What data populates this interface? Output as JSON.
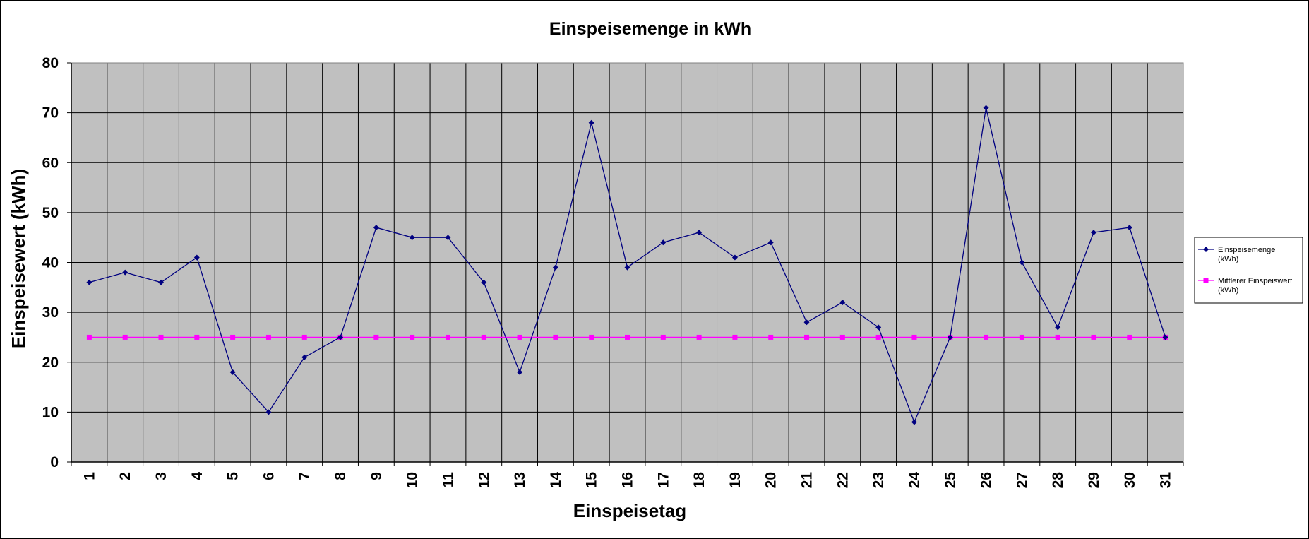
{
  "chart_data": {
    "type": "line",
    "title": "Einspeisemenge in kWh",
    "xlabel": "Einspeisetag",
    "ylabel": "Einspeisewert  (kWh)",
    "ylim": [
      0,
      80
    ],
    "yticks": [
      "0",
      "10",
      "20",
      "30",
      "40",
      "50",
      "60",
      "70",
      "80"
    ],
    "grid": true,
    "plot_background": "#c0c0c0",
    "legend_position": "right",
    "categories": [
      "1",
      "2",
      "3",
      "4",
      "5",
      "6",
      "7",
      "8",
      "9",
      "10",
      "11",
      "12",
      "13",
      "14",
      "15",
      "16",
      "17",
      "18",
      "19",
      "20",
      "21",
      "22",
      "23",
      "24",
      "25",
      "26",
      "27",
      "28",
      "29",
      "30",
      "31"
    ],
    "series": [
      {
        "name_line1": "Einspeisemenge",
        "name_line2": "(kWh)",
        "color": "#000080",
        "marker": "diamond",
        "values": [
          36,
          38,
          36,
          41,
          18,
          10,
          21,
          25,
          47,
          45,
          45,
          36,
          18,
          39,
          68,
          39,
          44,
          46,
          41,
          44,
          28,
          32,
          27,
          8,
          25,
          71,
          40,
          27,
          46,
          47,
          25
        ]
      },
      {
        "name_line1": "Mittlerer Einspeiswert",
        "name_line2": "(kWh)",
        "color": "#ff00ff",
        "marker": "square",
        "values": [
          25,
          25,
          25,
          25,
          25,
          25,
          25,
          25,
          25,
          25,
          25,
          25,
          25,
          25,
          25,
          25,
          25,
          25,
          25,
          25,
          25,
          25,
          25,
          25,
          25,
          25,
          25,
          25,
          25,
          25,
          25
        ]
      }
    ]
  }
}
